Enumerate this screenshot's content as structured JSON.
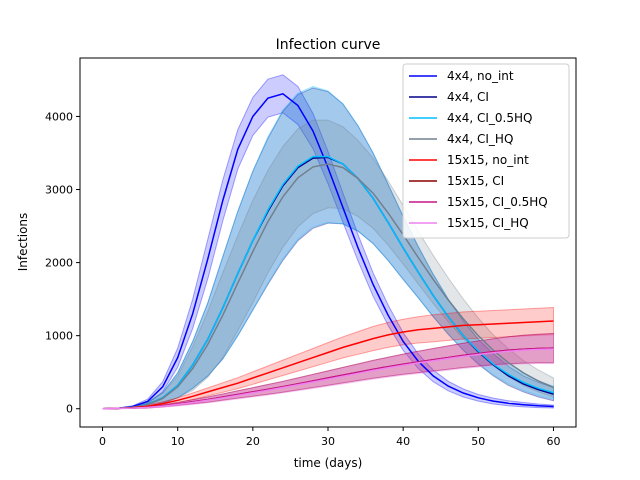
{
  "chart_data": {
    "type": "line",
    "title": "Infection curve",
    "xlabel": "time (days)",
    "ylabel": "Infections",
    "xlim": [
      -3,
      63
    ],
    "ylim": [
      -250,
      4800
    ],
    "xticks": [
      0,
      10,
      20,
      30,
      40,
      50,
      60
    ],
    "yticks": [
      0,
      1000,
      2000,
      3000,
      4000
    ],
    "grid": false,
    "legend_position": "top-right",
    "series": [
      {
        "name": "4x4, no_int",
        "color": "#0000ff",
        "x": [
          0,
          2,
          4,
          6,
          8,
          10,
          12,
          14,
          16,
          18,
          20,
          22,
          24,
          26,
          28,
          30,
          32,
          34,
          36,
          38,
          40,
          42,
          44,
          46,
          48,
          50,
          52,
          54,
          56,
          58,
          60
        ],
        "y": [
          0,
          5,
          30,
          100,
          300,
          700,
          1300,
          2050,
          2850,
          3550,
          4000,
          4250,
          4310,
          4150,
          3800,
          3300,
          2750,
          2200,
          1700,
          1280,
          920,
          650,
          450,
          310,
          215,
          150,
          105,
          75,
          55,
          40,
          30
        ],
        "band": [
          0,
          3,
          10,
          30,
          70,
          130,
          200,
          270,
          280,
          270,
          260,
          260,
          260,
          260,
          240,
          220,
          200,
          180,
          160,
          140,
          120,
          100,
          80,
          65,
          55,
          45,
          40,
          35,
          30,
          25,
          20
        ]
      },
      {
        "name": "4x4, CI",
        "color": "#00008b",
        "x": [
          0,
          2,
          4,
          6,
          8,
          10,
          12,
          14,
          16,
          18,
          20,
          22,
          24,
          26,
          28,
          30,
          32,
          34,
          36,
          38,
          40,
          42,
          44,
          46,
          48,
          50,
          52,
          54,
          56,
          58,
          60
        ],
        "y": [
          0,
          5,
          20,
          60,
          150,
          320,
          600,
          950,
          1380,
          1850,
          2300,
          2700,
          3050,
          3300,
          3430,
          3440,
          3350,
          3150,
          2880,
          2550,
          2200,
          1870,
          1550,
          1260,
          1000,
          780,
          600,
          450,
          340,
          260,
          200
        ],
        "band": [
          0,
          3,
          10,
          30,
          70,
          170,
          320,
          500,
          700,
          850,
          950,
          1000,
          1020,
          1000,
          960,
          900,
          820,
          720,
          620,
          520,
          430,
          350,
          290,
          240,
          200,
          170,
          150,
          130,
          110,
          100,
          90
        ]
      },
      {
        "name": "4x4, CI_0.5HQ",
        "color": "#00bfff",
        "x": [
          0,
          2,
          4,
          6,
          8,
          10,
          12,
          14,
          16,
          18,
          20,
          22,
          24,
          26,
          28,
          30,
          32,
          34,
          36,
          38,
          40,
          42,
          44,
          46,
          48,
          50,
          52,
          54,
          56,
          58,
          60
        ],
        "y": [
          0,
          5,
          20,
          60,
          150,
          320,
          600,
          950,
          1380,
          1850,
          2300,
          2720,
          3070,
          3320,
          3450,
          3450,
          3350,
          3150,
          2880,
          2550,
          2200,
          1870,
          1550,
          1260,
          1000,
          790,
          610,
          470,
          360,
          280,
          220
        ],
        "band": [
          0,
          3,
          10,
          30,
          70,
          170,
          320,
          500,
          700,
          850,
          950,
          1000,
          1020,
          1000,
          960,
          900,
          820,
          720,
          620,
          520,
          430,
          350,
          290,
          240,
          200,
          170,
          150,
          130,
          110,
          100,
          90
        ]
      },
      {
        "name": "4x4, CI_HQ",
        "color": "#708090",
        "x": [
          0,
          2,
          4,
          6,
          8,
          10,
          12,
          14,
          16,
          18,
          20,
          22,
          24,
          26,
          28,
          30,
          32,
          34,
          36,
          38,
          40,
          42,
          44,
          46,
          48,
          50,
          52,
          54,
          56,
          58,
          60
        ],
        "y": [
          0,
          5,
          20,
          55,
          140,
          300,
          550,
          880,
          1280,
          1720,
          2150,
          2560,
          2900,
          3160,
          3310,
          3350,
          3300,
          3150,
          2950,
          2680,
          2380,
          2070,
          1770,
          1490,
          1230,
          1000,
          800,
          630,
          490,
          380,
          290
        ],
        "band": [
          0,
          3,
          10,
          30,
          70,
          150,
          300,
          450,
          580,
          650,
          700,
          700,
          690,
          670,
          640,
          600,
          560,
          520,
          480,
          440,
          400,
          360,
          330,
          300,
          270,
          240,
          210,
          190,
          170,
          150,
          130
        ]
      },
      {
        "name": "15x15, no_int",
        "color": "#ff0000",
        "x": [
          0,
          2,
          4,
          6,
          8,
          10,
          12,
          14,
          16,
          18,
          20,
          22,
          24,
          26,
          28,
          30,
          32,
          34,
          36,
          38,
          40,
          42,
          44,
          46,
          48,
          50,
          52,
          54,
          56,
          58,
          60
        ],
        "y": [
          0,
          5,
          15,
          35,
          70,
          115,
          170,
          230,
          290,
          350,
          420,
          490,
          560,
          630,
          700,
          770,
          840,
          900,
          960,
          1010,
          1050,
          1080,
          1100,
          1120,
          1140,
          1150,
          1160,
          1170,
          1180,
          1190,
          1200
        ],
        "band": [
          0,
          3,
          8,
          15,
          25,
          35,
          45,
          55,
          65,
          75,
          85,
          95,
          105,
          115,
          125,
          135,
          145,
          155,
          165,
          170,
          175,
          180,
          185,
          185,
          185,
          185,
          185,
          185,
          185,
          185,
          185
        ]
      },
      {
        "name": "15x15, CI",
        "color": "#8b0000",
        "x": [
          0,
          2,
          4,
          6,
          8,
          10,
          12,
          14,
          16,
          18,
          20,
          22,
          24,
          26,
          28,
          30,
          32,
          34,
          36,
          38,
          40,
          42,
          44,
          46,
          48,
          50,
          52,
          54,
          56,
          58,
          60
        ],
        "y": [
          0,
          5,
          10,
          20,
          40,
          65,
          95,
          125,
          160,
          195,
          230,
          265,
          300,
          340,
          380,
          420,
          460,
          500,
          540,
          575,
          610,
          640,
          670,
          700,
          730,
          755,
          780,
          800,
          815,
          825,
          830
        ],
        "band": [
          0,
          2,
          5,
          10,
          15,
          20,
          28,
          35,
          42,
          50,
          58,
          66,
          74,
          82,
          90,
          98,
          106,
          114,
          122,
          130,
          138,
          146,
          154,
          160,
          166,
          172,
          178,
          184,
          190,
          195,
          200
        ]
      },
      {
        "name": "15x15, CI_0.5HQ",
        "color": "#c71585",
        "x": [
          0,
          2,
          4,
          6,
          8,
          10,
          12,
          14,
          16,
          18,
          20,
          22,
          24,
          26,
          28,
          30,
          32,
          34,
          36,
          38,
          40,
          42,
          44,
          46,
          48,
          50,
          52,
          54,
          56,
          58,
          60
        ],
        "y": [
          0,
          5,
          10,
          20,
          40,
          65,
          95,
          125,
          160,
          195,
          230,
          265,
          300,
          340,
          380,
          420,
          460,
          500,
          540,
          575,
          610,
          640,
          670,
          700,
          730,
          755,
          780,
          800,
          815,
          825,
          830
        ],
        "band": [
          0,
          2,
          5,
          10,
          15,
          20,
          28,
          35,
          42,
          50,
          58,
          66,
          74,
          82,
          90,
          98,
          106,
          114,
          122,
          130,
          138,
          146,
          154,
          160,
          166,
          172,
          178,
          184,
          190,
          195,
          200
        ]
      },
      {
        "name": "15x15, CI_HQ",
        "color": "#ee82ee",
        "x": [
          0,
          2,
          4,
          6,
          8,
          10,
          12,
          14,
          16,
          18,
          20,
          22,
          24,
          26,
          28,
          30,
          32,
          34,
          36,
          38,
          40,
          42,
          44,
          46,
          48,
          50,
          52,
          54,
          56,
          58,
          60
        ],
        "y": [
          0,
          4,
          8,
          18,
          35,
          58,
          85,
          115,
          148,
          183,
          218,
          253,
          290,
          328,
          366,
          405,
          445,
          485,
          525,
          560,
          595,
          627,
          658,
          688,
          716,
          742,
          766,
          786,
          802,
          812,
          818
        ],
        "band": [
          0,
          2,
          5,
          10,
          15,
          20,
          28,
          35,
          42,
          50,
          58,
          66,
          74,
          82,
          90,
          98,
          106,
          114,
          122,
          130,
          138,
          146,
          154,
          160,
          166,
          172,
          178,
          184,
          190,
          195,
          200
        ]
      }
    ]
  }
}
